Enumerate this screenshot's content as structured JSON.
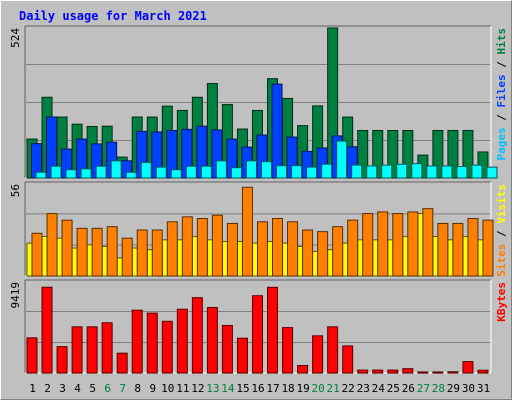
{
  "chart_data": {
    "type": "bar",
    "title": "Daily usage for March 2021",
    "title_color": "#0000ff",
    "background_color": "#c0c0c0",
    "grid": true,
    "x": {
      "labels": [
        "1",
        "2",
        "3",
        "4",
        "5",
        "6",
        "7",
        "8",
        "9",
        "10",
        "11",
        "12",
        "13",
        "14",
        "15",
        "16",
        "17",
        "18",
        "19",
        "20",
        "21",
        "22",
        "23",
        "24",
        "25",
        "26",
        "27",
        "28",
        "29",
        "30",
        "31"
      ],
      "weekend_days": [
        "6",
        "7",
        "13",
        "14",
        "20",
        "21",
        "27",
        "28"
      ],
      "weekday_color": "#000000",
      "weekend_color": "#008040"
    },
    "panels": [
      {
        "id": "hits-files-pages",
        "max_label": "524",
        "ylim": [
          0,
          524
        ],
        "axis_label_parts": [
          {
            "text": "Pages",
            "color": "#00c0ff"
          },
          {
            "text": " / ",
            "color": "#000000"
          },
          {
            "text": "Files",
            "color": "#0040ff"
          },
          {
            "text": " / ",
            "color": "#000000"
          },
          {
            "text": "Hits",
            "color": "#008040"
          }
        ],
        "series": [
          {
            "name": "Hits",
            "color": "#008040",
            "values": [
              136,
              282,
              213,
              188,
              180,
              181,
              73,
              213,
              213,
              251,
              236,
              282,
              330,
              257,
              171,
              236,
              347,
              278,
              183,
              252,
              524,
              213,
              166,
              166,
              166,
              166,
              80,
              166,
              166,
              166,
              91
            ]
          },
          {
            "name": "Files",
            "color": "#0040ff",
            "values": [
              120,
              213,
              101,
              136,
              119,
              125,
              60,
              163,
              161,
              166,
              170,
              181,
              168,
              136,
              108,
              150,
              328,
              143,
              93,
              105,
              147,
              109,
              0,
              0,
              0,
              0,
              0,
              0,
              0,
              0,
              0
            ]
          },
          {
            "name": "Pages",
            "color": "#00ffff",
            "values": [
              20,
              41,
              29,
              32,
              41,
              60,
              20,
              54,
              38,
              29,
              41,
              41,
              60,
              36,
              60,
              57,
              43,
              43,
              38,
              48,
              129,
              45,
              42,
              45,
              48,
              50,
              42,
              42,
              40,
              45,
              38
            ]
          }
        ]
      },
      {
        "id": "visits-sites",
        "max_label": "56",
        "ylim": [
          0,
          56
        ],
        "axis_label_parts": [
          {
            "text": "Sites",
            "color": "#ff8000"
          },
          {
            "text": " / ",
            "color": "#000000"
          },
          {
            "text": "Visits",
            "color": "#ffff00"
          }
        ],
        "series": [
          {
            "name": "Visits",
            "color": "#ffff00",
            "values": [
              20,
              24,
              23,
              17,
              19,
              18,
              11,
              17,
              16,
              22,
              22,
              24,
              22,
              21,
              21,
              20,
              21,
              20,
              18,
              15,
              16,
              20,
              22,
              22,
              22,
              24,
              38,
              24,
              22,
              24,
              22
            ]
          },
          {
            "name": "Sites",
            "color": "#ff8000",
            "values": [
              26,
              38,
              34,
              29,
              29,
              30,
              23,
              28,
              28,
              33,
              36,
              35,
              37,
              32,
              54,
              33,
              35,
              33,
              28,
              27,
              30,
              34,
              38,
              39,
              38,
              39,
              41,
              32,
              32,
              35,
              34
            ]
          }
        ]
      },
      {
        "id": "kbytes",
        "max_label": "9419",
        "ylim": [
          0,
          9419
        ],
        "axis_label_parts": [
          {
            "text": "KBytes",
            "color": "#ff0000"
          }
        ],
        "series": [
          {
            "name": "KBytes",
            "color": "#ff0000",
            "values": [
              3640,
              8878,
              2730,
              4780,
              4778,
              5200,
              2050,
              6500,
              6200,
              5350,
              6600,
              7800,
              6780,
              4920,
              3600,
              8000,
              8870,
              4700,
              780,
              3850,
              4780,
              2800,
              302,
              302,
              302,
              450,
              108,
              100,
              130,
              1180,
              285
            ]
          }
        ]
      }
    ]
  }
}
